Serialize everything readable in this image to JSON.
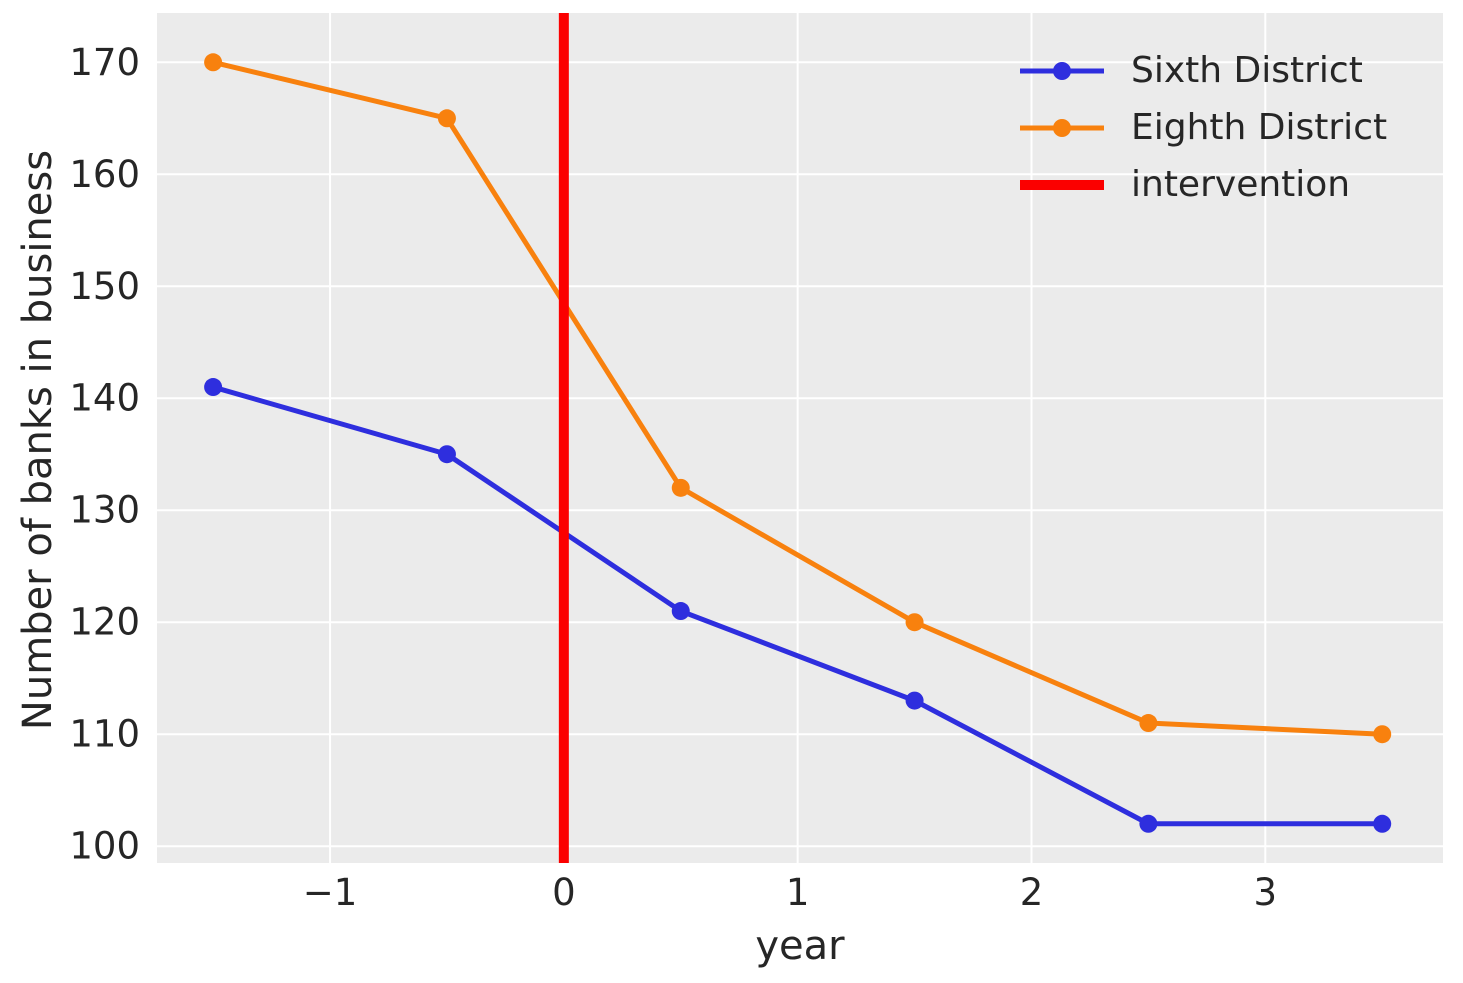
{
  "chart_data": {
    "type": "line",
    "title": "",
    "xlabel": "year",
    "ylabel": "Number of banks in business",
    "x": [
      -1.5,
      -0.5,
      0.5,
      1.5,
      2.5,
      3.5
    ],
    "series": [
      {
        "name": "Sixth District",
        "color": "#2e2ede",
        "values": [
          141,
          135,
          121,
          113,
          102,
          102
        ]
      },
      {
        "name": "Eighth District",
        "color": "#f8810e",
        "values": [
          170,
          165,
          132,
          120,
          111,
          110
        ]
      }
    ],
    "intervention": {
      "label": "intervention",
      "x": 0,
      "color": "#fb0000"
    },
    "xticks": [
      -1,
      0,
      1,
      2,
      3
    ],
    "yticks": [
      100,
      110,
      120,
      130,
      140,
      150,
      160,
      170
    ],
    "xlim": [
      -1.74,
      3.76
    ],
    "ylim": [
      98.5,
      174.4
    ],
    "grid": true,
    "legend_position": "upper right",
    "plot_bg": "#ebebeb",
    "grid_color": "#ffffff",
    "text_color": "#262626",
    "marker_radius": 9,
    "line_width": 5,
    "intervention_line_width": 10
  }
}
